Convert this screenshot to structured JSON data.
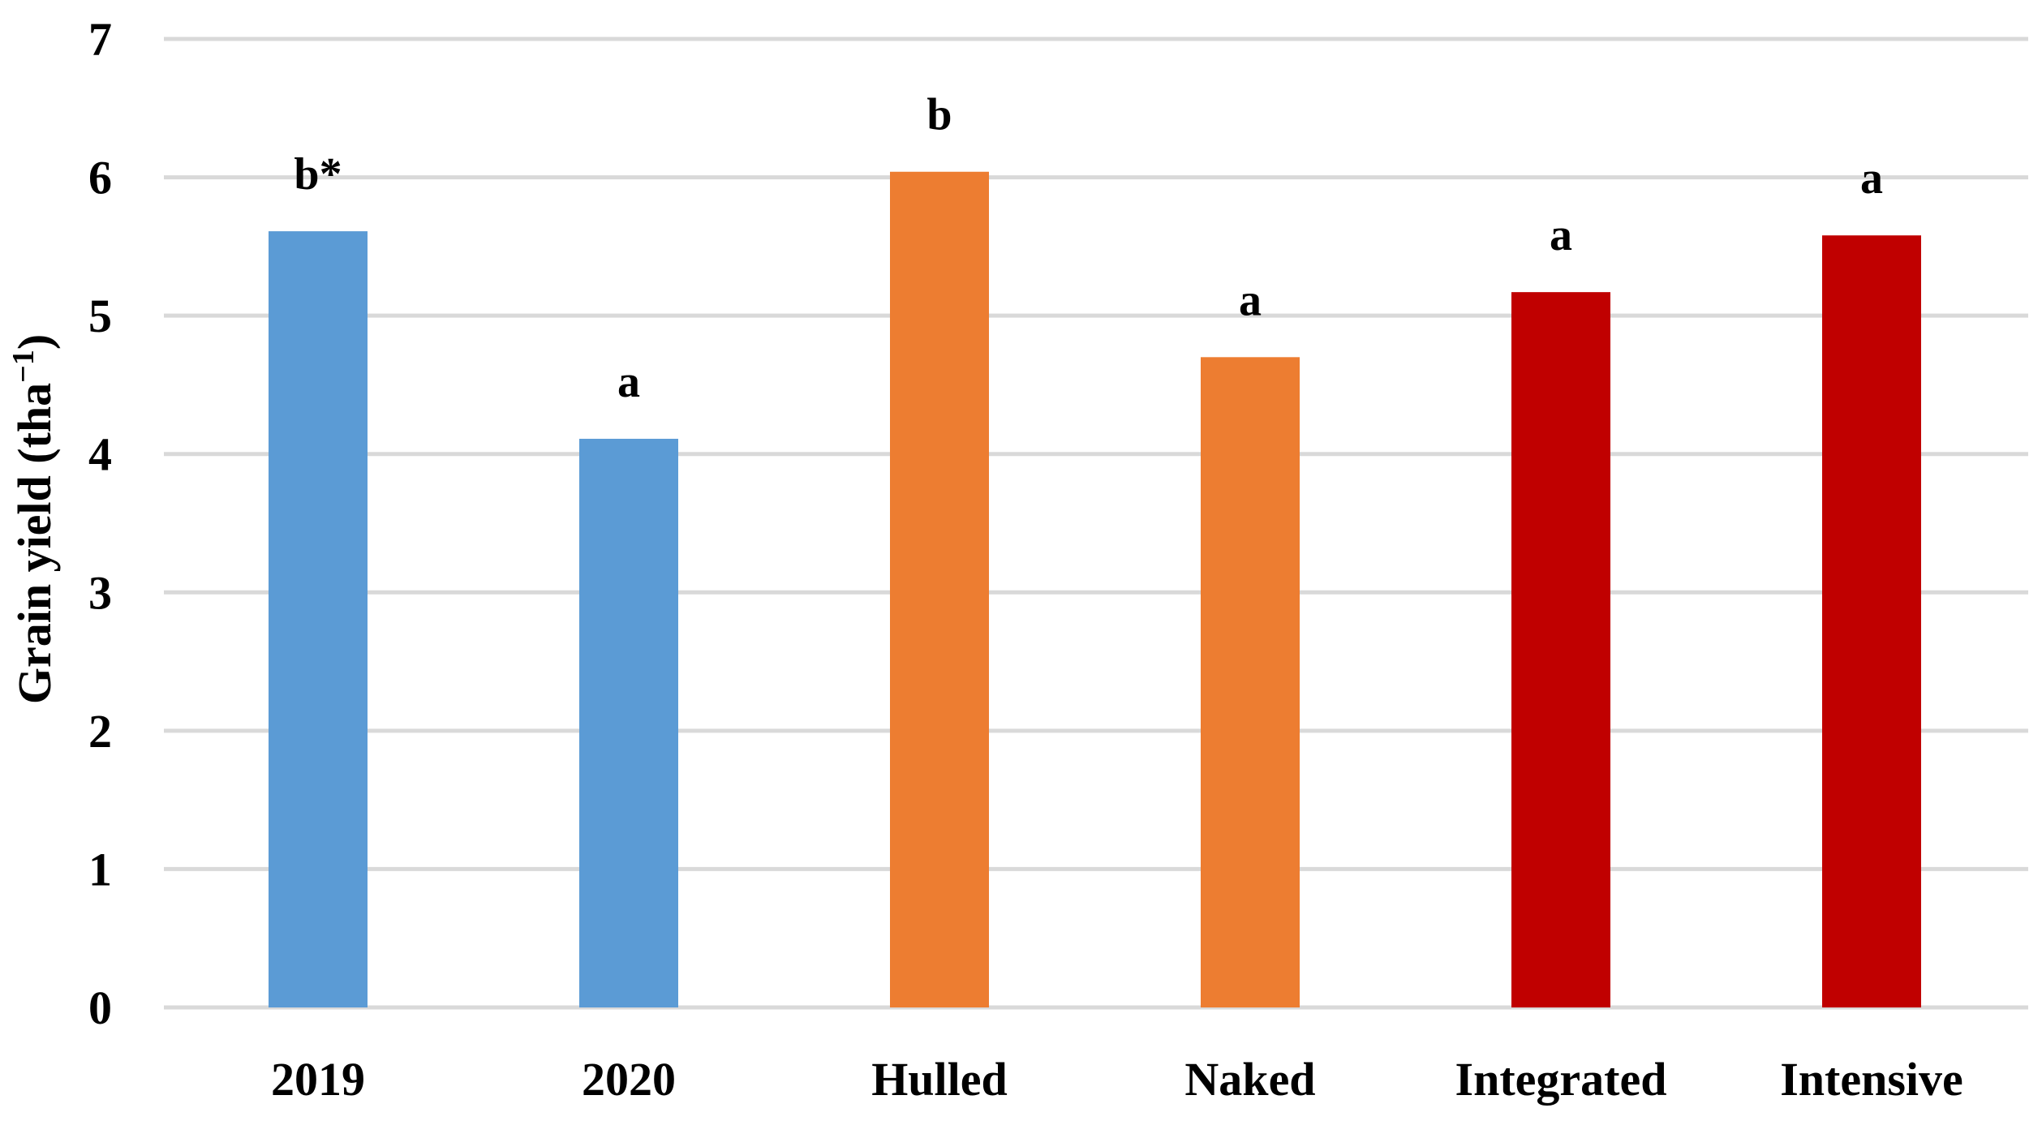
{
  "chart_data": {
    "type": "bar",
    "categories": [
      "2019",
      "2020",
      "Hulled",
      "Naked",
      "Integrated",
      "Intensive"
    ],
    "values": [
      5.61,
      4.11,
      6.04,
      4.7,
      5.17,
      5.58
    ],
    "bar_colors": [
      "#5b9bd5",
      "#5b9bd5",
      "#ed7d31",
      "#ed7d31",
      "#c00000",
      "#c00000"
    ],
    "data_labels": [
      "b*",
      "a",
      "b",
      "a",
      "a",
      "a"
    ],
    "title": "",
    "xlabel": "",
    "ylabel_main": "Grain yield (tha",
    "ylabel_sup": "−1",
    "ylabel_end": ")",
    "ylim": [
      0,
      7
    ],
    "yticks": [
      "0",
      "1",
      "2",
      "3",
      "4",
      "5",
      "6",
      "7"
    ],
    "grid": true,
    "gridline_color": "#d9d9d9"
  }
}
